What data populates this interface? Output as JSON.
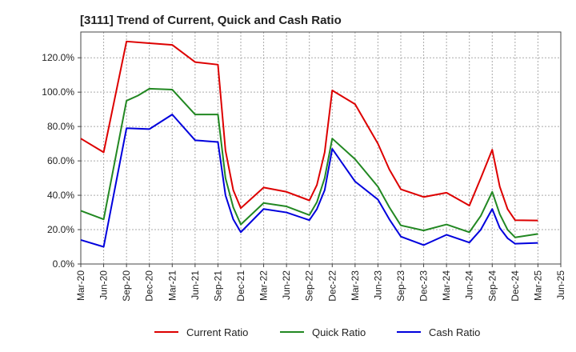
{
  "chart_data": {
    "type": "line",
    "title": "[3111]  Trend of Current, Quick and Cash Ratio",
    "xlabel": "",
    "ylabel": "",
    "ylim": [
      0,
      135
    ],
    "yticks": [
      0,
      20,
      40,
      60,
      80,
      100,
      120
    ],
    "ytick_labels": [
      "0.0%",
      "20.0%",
      "40.0%",
      "60.0%",
      "80.0%",
      "100.0%",
      "120.0%"
    ],
    "xtick_labels": [
      "Mar-20",
      "Jun-20",
      "Sep-20",
      "Dec-20",
      "Mar-21",
      "Jun-21",
      "Sep-21",
      "Dec-21",
      "Mar-22",
      "Jun-22",
      "Sep-22",
      "Dec-22",
      "Mar-23",
      "Jun-23",
      "Sep-23",
      "Dec-23",
      "Mar-24",
      "Jun-24",
      "Sep-24",
      "Dec-24",
      "Mar-25",
      "Jun-25"
    ],
    "grid": true,
    "legend": "bottom",
    "series": [
      {
        "name": "Current Ratio",
        "color": "#dd0000",
        "points": [
          [
            0,
            73
          ],
          [
            1,
            65
          ],
          [
            2,
            129.5
          ],
          [
            3,
            128.5
          ],
          [
            4,
            127.5
          ],
          [
            5,
            117.5
          ],
          [
            6,
            116
          ],
          [
            6.33,
            66
          ],
          [
            6.67,
            43
          ],
          [
            7,
            32.5
          ],
          [
            8,
            44.5
          ],
          [
            9,
            42
          ],
          [
            10,
            37
          ],
          [
            10.33,
            46
          ],
          [
            10.67,
            65
          ],
          [
            11,
            101
          ],
          [
            12,
            93
          ],
          [
            13,
            70
          ],
          [
            13.5,
            55
          ],
          [
            14,
            43.5
          ],
          [
            15,
            39
          ],
          [
            16,
            41.5
          ],
          [
            17,
            34
          ],
          [
            17.5,
            50
          ],
          [
            18,
            66.5
          ],
          [
            18.33,
            45
          ],
          [
            18.67,
            32
          ],
          [
            19,
            25.5
          ],
          [
            20,
            25.3
          ]
        ]
      },
      {
        "name": "Quick Ratio",
        "color": "#228822",
        "points": [
          [
            0,
            31
          ],
          [
            1,
            26
          ],
          [
            2,
            95
          ],
          [
            2.5,
            98
          ],
          [
            3,
            102
          ],
          [
            4,
            101.5
          ],
          [
            5,
            87
          ],
          [
            6,
            87
          ],
          [
            6.33,
            50
          ],
          [
            6.67,
            33
          ],
          [
            7,
            23
          ],
          [
            8,
            35.5
          ],
          [
            9,
            33.5
          ],
          [
            10,
            28.5
          ],
          [
            10.33,
            36
          ],
          [
            10.67,
            50
          ],
          [
            11,
            73
          ],
          [
            12,
            61
          ],
          [
            13,
            45
          ],
          [
            13.5,
            33
          ],
          [
            14,
            22.5
          ],
          [
            15,
            19.5
          ],
          [
            16,
            23
          ],
          [
            17,
            18.5
          ],
          [
            17.5,
            28
          ],
          [
            18,
            42
          ],
          [
            18.33,
            29
          ],
          [
            18.67,
            20
          ],
          [
            19,
            15.5
          ],
          [
            20,
            17.5
          ]
        ]
      },
      {
        "name": "Cash Ratio",
        "color": "#0000dd",
        "points": [
          [
            0,
            14
          ],
          [
            1,
            10
          ],
          [
            2,
            79
          ],
          [
            3,
            78.5
          ],
          [
            4,
            87
          ],
          [
            5,
            72
          ],
          [
            6,
            71
          ],
          [
            6.33,
            40
          ],
          [
            6.67,
            26
          ],
          [
            7,
            18.5
          ],
          [
            8,
            32
          ],
          [
            9,
            30
          ],
          [
            10,
            25.5
          ],
          [
            10.33,
            32
          ],
          [
            10.67,
            43
          ],
          [
            11,
            67
          ],
          [
            12,
            48
          ],
          [
            13,
            37.5
          ],
          [
            13.5,
            26
          ],
          [
            14,
            16
          ],
          [
            15,
            11
          ],
          [
            16,
            17
          ],
          [
            17,
            12.5
          ],
          [
            17.5,
            20
          ],
          [
            18,
            32
          ],
          [
            18.33,
            21
          ],
          [
            18.67,
            15
          ],
          [
            19,
            11.8
          ],
          [
            20,
            12.3
          ]
        ]
      }
    ]
  }
}
